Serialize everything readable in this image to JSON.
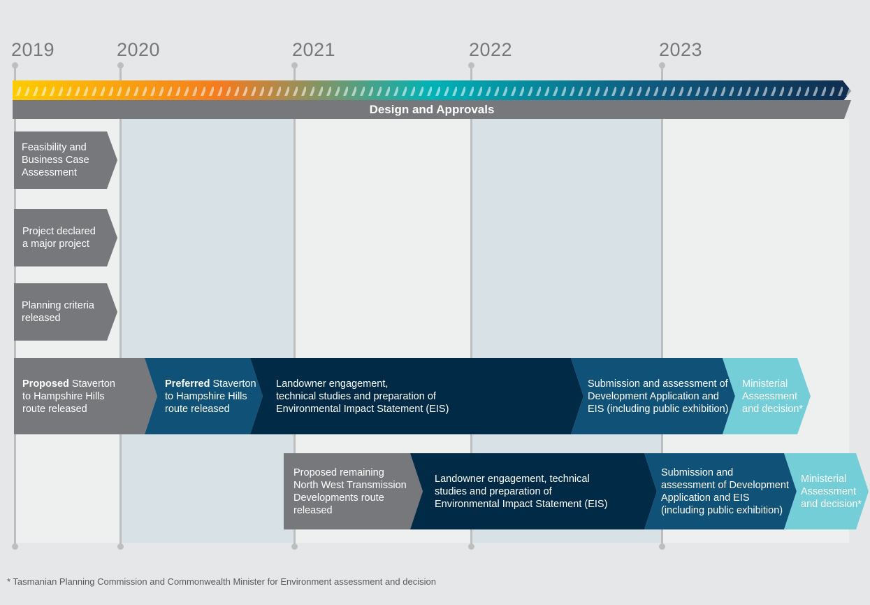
{
  "years": [
    "2019",
    "2020",
    "2021",
    "2022",
    "2023"
  ],
  "colors": {
    "background": "#e6e7e8",
    "panel_light": "#eef0f0",
    "panel_shaded": "#d8e2e6",
    "grey": "#77787b",
    "mid_blue": "#0f5177",
    "dark_navy": "#002a45",
    "light_teal": "#73ced8",
    "gradient": [
      "#ffcc00",
      "#f47b20",
      "#00b2b6",
      "#0f5c80",
      "#0f2d4f"
    ]
  },
  "banner": {
    "label": "Design and Approvals"
  },
  "early_steps": [
    {
      "text": "Feasibility and\nBusiness Case\nAssessment"
    },
    {
      "text": "Project declared\na major project"
    },
    {
      "text": "Planning criteria\nreleased"
    }
  ],
  "row1": [
    {
      "bold": "Proposed",
      "text": " Staverton\nto Hampshire Hills\nroute released"
    },
    {
      "bold": "Preferred",
      "text": " Staverton\nto Hampshire Hills\nroute released"
    },
    {
      "bold": "",
      "text": "Landowner engagement,\ntechnical studies and preparation of\nEnvironmental Impact Statement (EIS)"
    },
    {
      "bold": "",
      "text": "Submission and assessment of\nDevelopment Application and\nEIS (including public exhibition)"
    },
    {
      "bold": "",
      "text": "Ministerial\nAssessment\nand decision*"
    }
  ],
  "row2": [
    {
      "text": "Proposed remaining\nNorth West Transmission\nDevelopments route\nreleased"
    },
    {
      "text": "Landowner engagement, technical\nstudies and preparation of\nEnvironmental Impact Statement (EIS)"
    },
    {
      "text": "Submission and\nassessment of Development\nApplication and EIS\n(including public exhibition)"
    },
    {
      "text": "Ministerial\nAssessment\nand decision*"
    }
  ],
  "footnote": "* Tasmanian Planning Commission and Commonwealth Minister for Environment assessment and decision"
}
